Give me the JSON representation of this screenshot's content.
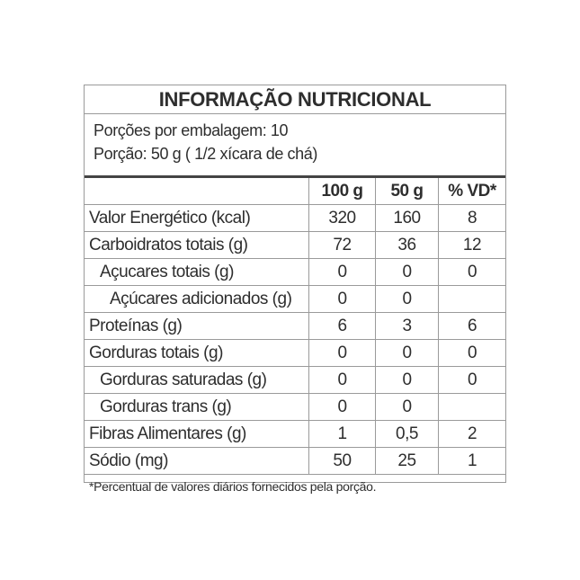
{
  "title": "INFORMAÇÃO NUTRICIONAL",
  "servings_per_package": "Porções por embalagem: 10",
  "serving_size": "Porção: 50 g ( 1/2 xícara de chá)",
  "columns": [
    "",
    "100 g",
    "50 g",
    "% VD*"
  ],
  "rows": [
    {
      "name": "Valor Energético (kcal)",
      "per100": "320",
      "per50": "160",
      "vd": "8",
      "indent": 0
    },
    {
      "name": "Carboidratos totais (g)",
      "per100": "72",
      "per50": "36",
      "vd": "12",
      "indent": 0
    },
    {
      "name": "Açucares totais (g)",
      "per100": "0",
      "per50": "0",
      "vd": "0",
      "indent": 1
    },
    {
      "name": "Açúcares adicionados (g)",
      "per100": "0",
      "per50": "0",
      "vd": "",
      "indent": 2
    },
    {
      "name": "Proteínas (g)",
      "per100": "6",
      "per50": "3",
      "vd": "6",
      "indent": 0
    },
    {
      "name": "Gorduras totais (g)",
      "per100": "0",
      "per50": "0",
      "vd": "0",
      "indent": 0
    },
    {
      "name": "Gorduras saturadas (g)",
      "per100": "0",
      "per50": "0",
      "vd": "0",
      "indent": 1
    },
    {
      "name": "Gorduras trans (g)",
      "per100": "0",
      "per50": "0",
      "vd": "",
      "indent": 1
    },
    {
      "name": "Fibras Alimentares (g)",
      "per100": "1",
      "per50": "0,5",
      "vd": "2",
      "indent": 0
    },
    {
      "name": "Sódio (mg)",
      "per100": "50",
      "per50": "25",
      "vd": "1",
      "indent": 0
    }
  ],
  "footnote": "*Percentual de valores diários fornecidos pela porção."
}
